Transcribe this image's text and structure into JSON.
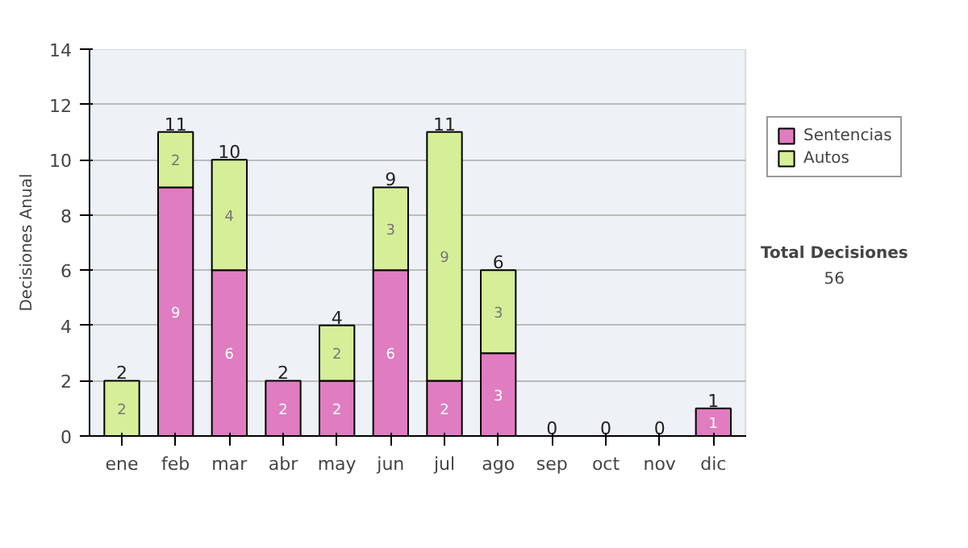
{
  "chart_data": {
    "type": "bar",
    "stacked": true,
    "ylabel": "Decisiones Anual",
    "categories": [
      "ene",
      "feb",
      "mar",
      "abr",
      "may",
      "jun",
      "jul",
      "ago",
      "sep",
      "oct",
      "nov",
      "dic"
    ],
    "series": [
      {
        "name": "Sentencias",
        "color": "#e07cc0",
        "values": [
          0,
          9,
          6,
          2,
          2,
          6,
          2,
          3,
          0,
          0,
          0,
          1
        ],
        "value_labels": [
          null,
          "9",
          "6",
          "2",
          "2",
          "6",
          "2",
          "3",
          null,
          null,
          null,
          "1"
        ]
      },
      {
        "name": "Autos",
        "color": "#d6ee98",
        "values": [
          2,
          2,
          4,
          0,
          2,
          3,
          9,
          3,
          0,
          0,
          0,
          0
        ],
        "value_labels": [
          "2",
          "2",
          "4",
          null,
          "2",
          "3",
          "9",
          "3",
          null,
          null,
          null,
          null
        ]
      }
    ],
    "totals": [
      "2",
      "11",
      "10",
      "2",
      "4",
      "9",
      "11",
      "6",
      "0",
      "0",
      "0",
      "1"
    ],
    "ylim": [
      0,
      14
    ],
    "yticks": [
      0,
      2,
      4,
      6,
      8,
      10,
      12,
      14
    ],
    "grid": "y",
    "legend": "right",
    "annotations": [
      "Total Decisiones",
      "56"
    ]
  }
}
